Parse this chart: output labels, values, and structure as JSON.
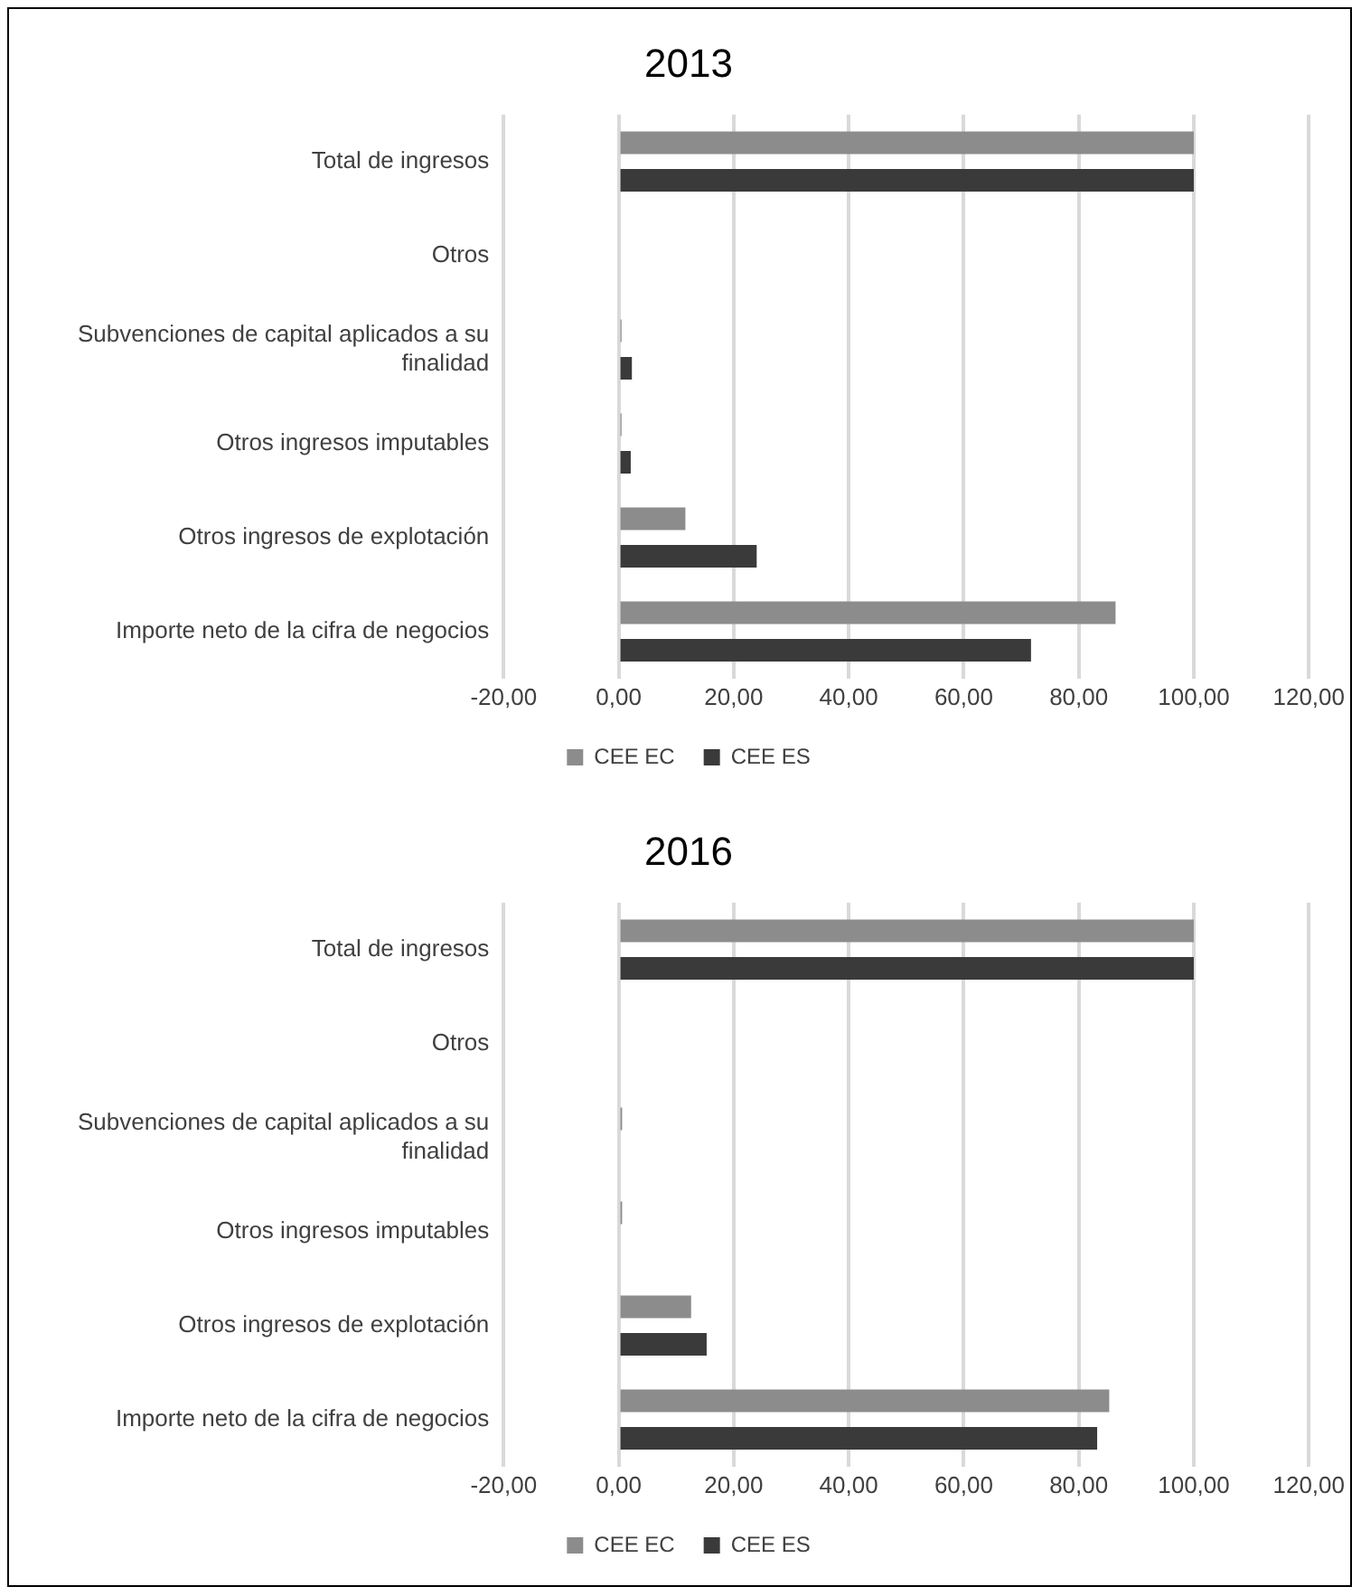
{
  "chart_data": [
    {
      "type": "bar",
      "title": "2013",
      "orientation": "horizontal",
      "categories": [
        "Total de ingresos",
        "Otros",
        "Subvenciones de capital aplicados a su finalidad",
        "Otros ingresos imputables",
        "Otros ingresos de explotación",
        "Importe neto de la cifra de negocios"
      ],
      "series": [
        {
          "name": "CEE EC",
          "color": "#8c8c8c",
          "values": [
            100,
            0,
            0.5,
            0.5,
            11.6,
            86.4
          ]
        },
        {
          "name": "CEE ES",
          "color": "#3a3a3a",
          "values": [
            100,
            0,
            2.3,
            2.1,
            24.0,
            71.7
          ]
        }
      ],
      "xlim": [
        -20,
        120
      ],
      "xticks": [
        {
          "value": -20,
          "label": "-20,00"
        },
        {
          "value": 0,
          "label": "0,00"
        },
        {
          "value": 20,
          "label": "20,00"
        },
        {
          "value": 40,
          "label": "40,00"
        },
        {
          "value": 60,
          "label": "60,00"
        },
        {
          "value": 80,
          "label": "80,00"
        },
        {
          "value": 100,
          "label": "100,00"
        },
        {
          "value": 120,
          "label": "120,00"
        }
      ],
      "grid": "x",
      "legend": "bottom"
    },
    {
      "type": "bar",
      "title": "2016",
      "orientation": "horizontal",
      "categories": [
        "Total de ingresos",
        "Otros",
        "Subvenciones de capital aplicados a su finalidad",
        "Otros ingresos imputables",
        "Otros ingresos de explotación",
        "Importe neto de la cifra de negocios"
      ],
      "series": [
        {
          "name": "CEE EC",
          "color": "#8c8c8c",
          "values": [
            100,
            0,
            0.6,
            0.6,
            12.6,
            85.3
          ]
        },
        {
          "name": "CEE ES",
          "color": "#3a3a3a",
          "values": [
            100,
            0,
            0,
            0,
            15.3,
            83.2
          ]
        }
      ],
      "xlim": [
        -20,
        120
      ],
      "xticks": [
        {
          "value": -20,
          "label": "-20,00"
        },
        {
          "value": 0,
          "label": "0,00"
        },
        {
          "value": 20,
          "label": "20,00"
        },
        {
          "value": 40,
          "label": "40,00"
        },
        {
          "value": 60,
          "label": "60,00"
        },
        {
          "value": 80,
          "label": "80,00"
        },
        {
          "value": 100,
          "label": "100,00"
        },
        {
          "value": 120,
          "label": "120,00"
        }
      ],
      "grid": "x",
      "legend": "bottom"
    }
  ]
}
